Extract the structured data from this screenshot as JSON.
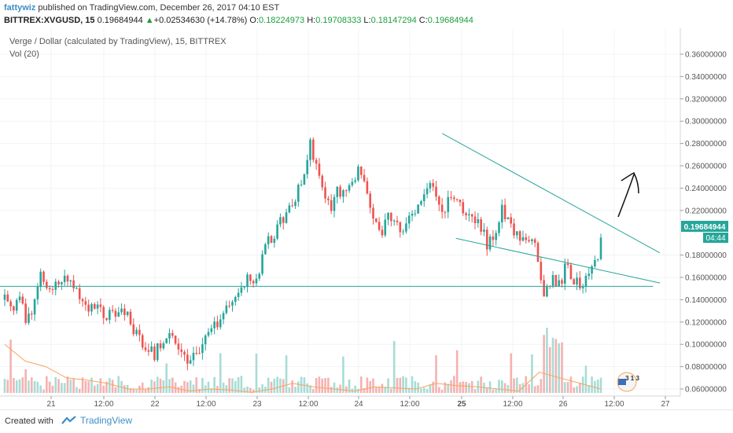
{
  "header": {
    "author": "fattywiz",
    "published_text": "published on TradingView.com, December 26, 2017 04:10 EST",
    "symbol": "BITTREX:XVGUSD, 15",
    "last": "0.19684944",
    "change": "+0.02534630 (+14.78%)",
    "open_label": "O:",
    "open": "0.18224973",
    "high_label": "H:",
    "high": "0.19708333",
    "low_label": "L:",
    "low": "0.18147294",
    "close_label": "C:",
    "close": "0.19684944"
  },
  "legend": {
    "title": "Verge / Dollar (calculated by TradingView), 15, BITTREX",
    "volume": "Vol (20)"
  },
  "price_axis": {
    "ticks": [
      "0.36000000",
      "0.34000000",
      "0.32000000",
      "0.30000000",
      "0.28000000",
      "0.26000000",
      "0.24000000",
      "0.22000000",
      "0.18000000",
      "0.16000000",
      "0.14000000",
      "0.12000000",
      "0.10000000",
      "0.08000000",
      "0.06000000"
    ],
    "price_label": "0.19684944",
    "time_label": "04:44",
    "price_label_color": "#26a69a"
  },
  "time_axis": {
    "ticks": [
      "21",
      "12:00",
      "22",
      "12:00",
      "23",
      "12:00",
      "24",
      "12:00",
      "25",
      "12:00",
      "26",
      "12:00",
      "27"
    ]
  },
  "chart_data": {
    "type": "candlestick",
    "ylim": [
      0.05,
      0.37
    ],
    "up_color": "#26a69a",
    "down_color": "#ef5350",
    "line_color": "#26a69a",
    "candle_count": 200,
    "close_path": [
      0.14,
      0.13,
      0.145,
      0.12,
      0.135,
      0.16,
      0.15,
      0.155,
      0.16,
      0.155,
      0.15,
      0.14,
      0.13,
      0.14,
      0.12,
      0.135,
      0.125,
      0.13,
      0.11,
      0.105,
      0.1,
      0.09,
      0.1,
      0.11,
      0.105,
      0.095,
      0.085,
      0.09,
      0.1,
      0.11,
      0.12,
      0.13,
      0.135,
      0.15,
      0.16,
      0.155,
      0.17,
      0.19,
      0.2,
      0.21,
      0.22,
      0.23,
      0.25,
      0.28,
      0.26,
      0.24,
      0.22,
      0.24,
      0.23,
      0.25,
      0.255,
      0.24,
      0.21,
      0.2,
      0.22,
      0.21,
      0.205,
      0.215,
      0.22,
      0.23,
      0.245,
      0.23,
      0.22,
      0.235,
      0.23,
      0.215,
      0.21,
      0.205,
      0.19,
      0.2,
      0.22,
      0.21,
      0.2,
      0.19,
      0.195,
      0.185,
      0.14,
      0.16,
      0.15,
      0.17,
      0.16,
      0.155,
      0.16,
      0.17,
      0.19
    ],
    "volume_ma": [
      0.1,
      0.085,
      0.08,
      0.07,
      0.068,
      0.065,
      0.06,
      0.06,
      0.062,
      0.058,
      0.06,
      0.059,
      0.057,
      0.06,
      0.065,
      0.062,
      0.06,
      0.058,
      0.062,
      0.061,
      0.06,
      0.065,
      0.063,
      0.062,
      0.06,
      0.058,
      0.075,
      0.07,
      0.065,
      0.06
    ],
    "trendlines": [
      {
        "name": "upper-resistance",
        "p1": [
          0.65,
          0.289
        ],
        "p2": [
          0.97,
          0.182
        ]
      },
      {
        "name": "lower-support",
        "p1": [
          0.67,
          0.195
        ],
        "p2": [
          0.97,
          0.155
        ]
      },
      {
        "name": "horizontal-support",
        "p1": [
          0.0,
          0.152
        ],
        "p2": [
          0.96,
          0.152
        ]
      }
    ]
  },
  "watermark": {
    "badge_text": "3 1 3"
  },
  "footer": {
    "created_with": "Created with",
    "brand": "TradingView"
  }
}
